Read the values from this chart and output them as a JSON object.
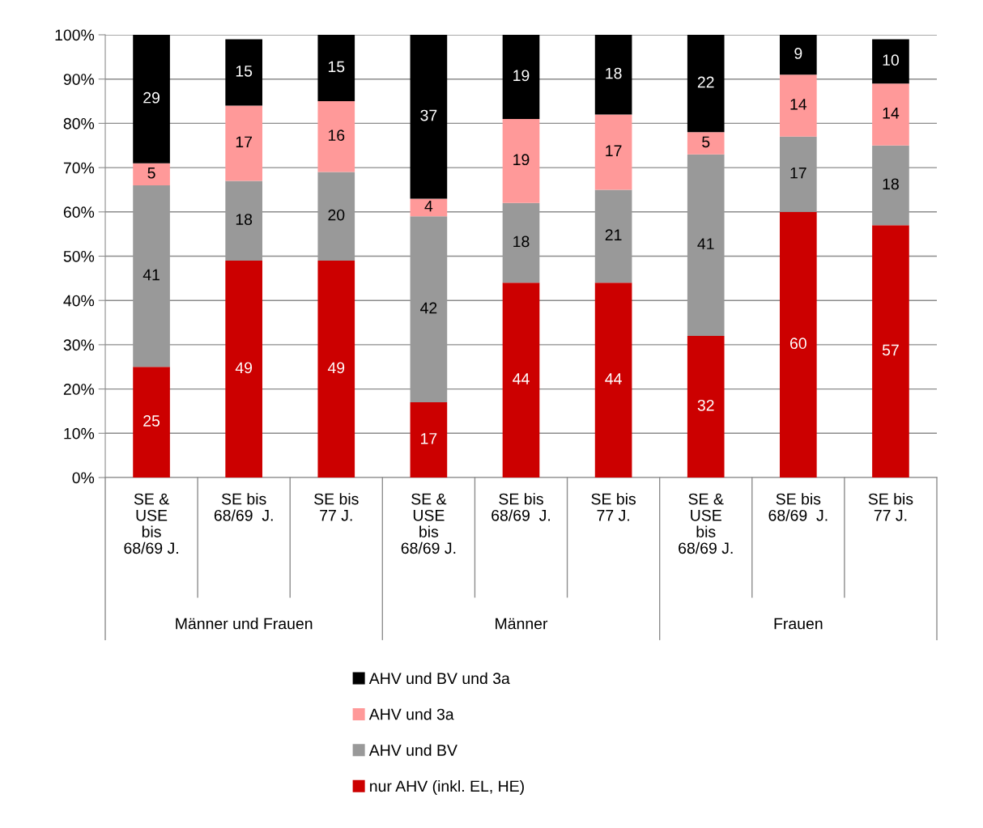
{
  "chart_data": {
    "type": "bar",
    "stacked": true,
    "data_labels": true,
    "grid": "y",
    "legend": "bottom",
    "categories": [
      "SE &\nUSE\nbis\n68/69 J.",
      "SE bis\n68/69  J.",
      "SE bis\n77 J.",
      "SE &\nUSE\nbis\n68/69 J.",
      "SE bis\n68/69  J.",
      "SE bis\n77 J.",
      "SE &\nUSE\nbis\n68/69 J.",
      "SE bis\n68/69  J.",
      "SE bis\n77 J."
    ],
    "annotations": [
      "Männer und Frauen",
      "Männer",
      "Frauen"
    ],
    "ylim": [
      0,
      100
    ],
    "yticks": [
      {
        "value": 0,
        "label": "0%"
      },
      {
        "value": 10,
        "label": "10%"
      },
      {
        "value": 20,
        "label": "20%"
      },
      {
        "value": 30,
        "label": "30%"
      },
      {
        "value": 40,
        "label": "40%"
      },
      {
        "value": 50,
        "label": "50%"
      },
      {
        "value": 60,
        "label": "60%"
      },
      {
        "value": 70,
        "label": "70%"
      },
      {
        "value": 80,
        "label": "80%"
      },
      {
        "value": 90,
        "label": "90%"
      },
      {
        "value": 100,
        "label": "100%"
      }
    ],
    "series": [
      {
        "name": "nur AHV (inkl. EL, HE)",
        "color": "#cc0000",
        "values": [
          25,
          49,
          49,
          17,
          44,
          44,
          32,
          60,
          57
        ]
      },
      {
        "name": "AHV und BV",
        "color": "#999999",
        "values": [
          41,
          18,
          20,
          42,
          18,
          21,
          41,
          17,
          18
        ]
      },
      {
        "name": "AHV und 3a",
        "color": "#ff9999",
        "values": [
          5,
          17,
          16,
          4,
          19,
          17,
          5,
          14,
          14
        ]
      },
      {
        "name": "AHV und BV und 3a",
        "color": "#000000",
        "values": [
          29,
          15,
          15,
          37,
          19,
          18,
          22,
          9,
          10
        ]
      }
    ]
  }
}
